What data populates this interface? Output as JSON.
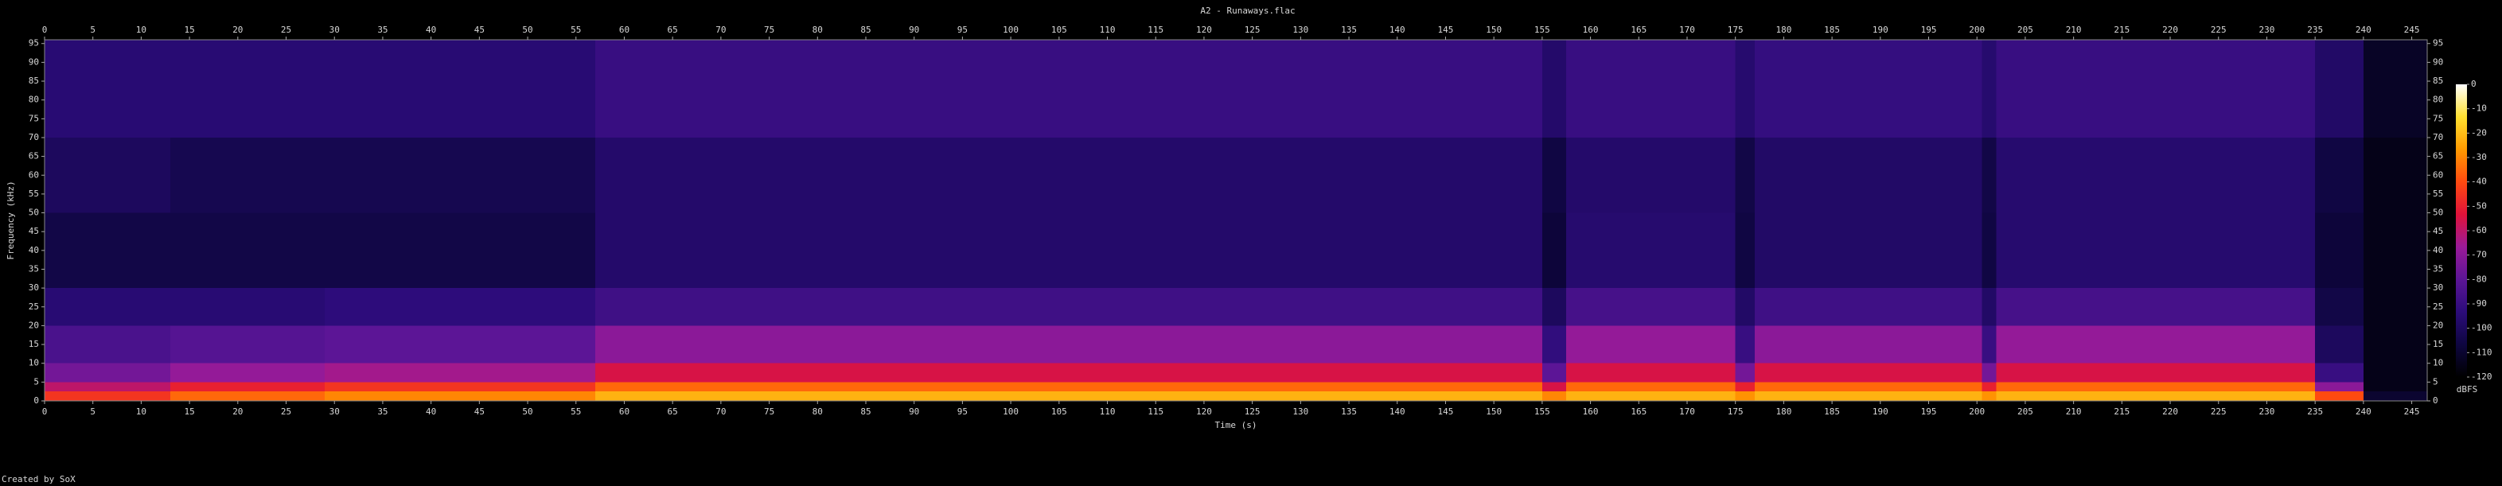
{
  "chart_data": {
    "type": "heatmap",
    "title": "A2 - Runaways.flac",
    "xlabel": "Time (s)",
    "ylabel": "Frequency (kHz)",
    "zlabel": "dBFS",
    "credit": "Created by SoX",
    "xlim": [
      0,
      246.6
    ],
    "ylim": [
      0,
      96
    ],
    "zlim": [
      -120,
      0
    ],
    "xticks": [
      0,
      5,
      10,
      15,
      20,
      25,
      30,
      35,
      40,
      45,
      50,
      55,
      60,
      65,
      70,
      75,
      80,
      85,
      90,
      95,
      100,
      105,
      110,
      115,
      120,
      125,
      130,
      135,
      140,
      145,
      150,
      155,
      160,
      165,
      170,
      175,
      180,
      185,
      190,
      195,
      200,
      205,
      210,
      215,
      220,
      225,
      230,
      235,
      240,
      245
    ],
    "yticks": [
      0,
      5,
      10,
      15,
      20,
      25,
      30,
      35,
      40,
      45,
      50,
      55,
      60,
      65,
      70,
      75,
      80,
      85,
      90,
      95
    ],
    "zticks": [
      0,
      -10,
      -20,
      -30,
      -40,
      -50,
      -60,
      -70,
      -80,
      -90,
      -100,
      -110,
      -120
    ],
    "colormap": [
      "#000000",
      "#0e0640",
      "#2c0c7a",
      "#5c1596",
      "#9a1a98",
      "#e0123a",
      "#ff4a10",
      "#ff9a00",
      "#ffe030",
      "#ffffff"
    ],
    "x_edges": [
      0,
      13,
      29,
      57,
      155,
      157.5,
      175,
      177,
      200.5,
      202,
      235,
      240,
      246.6
    ],
    "y_edges": [
      0,
      2.5,
      5,
      10,
      20,
      30,
      50,
      70,
      96
    ],
    "z": [
      [
        -45,
        -60,
        -75,
        -85,
        -95,
        -105,
        -100,
        -95
      ],
      [
        -35,
        -50,
        -68,
        -82,
        -95,
        -105,
        -103,
        -95
      ],
      [
        -30,
        -45,
        -65,
        -80,
        -93,
        -105,
        -103,
        -95
      ],
      [
        -22,
        -35,
        -55,
        -70,
        -88,
        -97,
        -97,
        -90
      ],
      [
        -30,
        -55,
        -80,
        -92,
        -100,
        -108,
        -106,
        -97
      ],
      [
        -22,
        -35,
        -55,
        -68,
        -86,
        -96,
        -97,
        -90
      ],
      [
        -28,
        -50,
        -75,
        -90,
        -98,
        -106,
        -105,
        -96
      ],
      [
        -22,
        -35,
        -55,
        -70,
        -88,
        -98,
        -98,
        -91
      ],
      [
        -28,
        -50,
        -75,
        -90,
        -98,
        -106,
        -105,
        -96
      ],
      [
        -22,
        -35,
        -55,
        -68,
        -86,
        -96,
        -96,
        -90
      ],
      [
        -40,
        -70,
        -90,
        -100,
        -105,
        -108,
        -106,
        -98
      ],
      [
        -110,
        -115,
        -115,
        -115,
        -115,
        -115,
        -115,
        -112
      ]
    ]
  }
}
